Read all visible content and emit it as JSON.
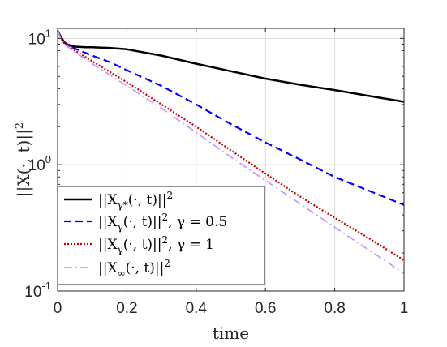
{
  "chart_data": {
    "type": "line",
    "title": "",
    "xlabel": "time",
    "ylabel": "||X(·,t)||²",
    "xlim": [
      0,
      1
    ],
    "ylim": [
      0.1,
      12
    ],
    "yscale": "log",
    "grid": true,
    "legend_position": "bottom-left",
    "x_ticks": [
      {
        "value": 0,
        "label": "0"
      },
      {
        "value": 0.2,
        "label": "0.2"
      },
      {
        "value": 0.4,
        "label": "0.4"
      },
      {
        "value": 0.6,
        "label": "0.6"
      },
      {
        "value": 0.8,
        "label": "0.8"
      },
      {
        "value": 1,
        "label": "1"
      }
    ],
    "y_ticks": [
      {
        "value": 0.1,
        "base": "10",
        "exp": "-1"
      },
      {
        "value": 1,
        "base": "10",
        "exp": "0"
      },
      {
        "value": 10,
        "base": "10",
        "exp": "1"
      }
    ],
    "series": [
      {
        "name": "||Xγ*(·,t)||²",
        "color": "#000000",
        "dash": "solid",
        "x": [
          0,
          0.01,
          0.02,
          0.03,
          0.05,
          0.08,
          0.1,
          0.15,
          0.2,
          0.3,
          0.4,
          0.5,
          0.6,
          0.7,
          0.8,
          0.9,
          1.0
        ],
        "y": [
          11.5,
          10.2,
          9.3,
          8.9,
          8.6,
          8.5,
          8.5,
          8.4,
          8.2,
          7.3,
          6.3,
          5.5,
          4.8,
          4.3,
          3.9,
          3.5,
          3.15
        ]
      },
      {
        "name": "||Xγ(·,t)||², γ = 0.5",
        "color": "#0000ff",
        "dash": "dashed",
        "x": [
          0,
          0.01,
          0.02,
          0.05,
          0.1,
          0.15,
          0.2,
          0.3,
          0.4,
          0.5,
          0.6,
          0.7,
          0.8,
          0.9,
          1.0
        ],
        "y": [
          11.5,
          10.0,
          9.2,
          8.3,
          7.3,
          6.5,
          5.6,
          4.2,
          3.0,
          2.1,
          1.5,
          1.1,
          0.8,
          0.62,
          0.48
        ]
      },
      {
        "name": "||Xγ(·,t)||², γ = 1",
        "color": "#cc0000",
        "dash": "dotted",
        "x": [
          0,
          0.01,
          0.02,
          0.05,
          0.1,
          0.2,
          0.3,
          0.4,
          0.5,
          0.6,
          0.7,
          0.8,
          0.9,
          1.0
        ],
        "y": [
          11.5,
          9.9,
          9.1,
          8.0,
          6.6,
          4.5,
          3.0,
          2.0,
          1.3,
          0.85,
          0.56,
          0.38,
          0.26,
          0.175
        ]
      },
      {
        "name": "||X∞(·,t)||²",
        "color": "#cc99ff",
        "dash": "dashdot",
        "x": [
          0,
          0.01,
          0.02,
          0.05,
          0.1,
          0.2,
          0.3,
          0.4,
          0.5,
          0.6,
          0.7,
          0.8,
          0.9,
          1.0
        ],
        "y": [
          11.5,
          9.8,
          9.0,
          7.8,
          6.3,
          4.2,
          2.8,
          1.8,
          1.15,
          0.75,
          0.49,
          0.32,
          0.21,
          0.138
        ]
      }
    ]
  },
  "legend": {
    "items": [
      {
        "base": "||X",
        "sub": "γ*",
        "rest": "(·, t)||",
        "sup": "2",
        "extra": ""
      },
      {
        "base": "||X",
        "sub": "γ",
        "rest": "(·, t)||",
        "sup": "2",
        "extra": ", γ = 0.5"
      },
      {
        "base": "||X",
        "sub": "γ",
        "rest": "(·, t)||",
        "sup": "2",
        "extra": ", γ = 1"
      },
      {
        "base": "||X",
        "sub": "∞",
        "rest": "(·, t)||",
        "sup": "2",
        "extra": ""
      }
    ]
  },
  "ylabel_parts": {
    "main": "||X(·, t)||",
    "sup": "2"
  }
}
